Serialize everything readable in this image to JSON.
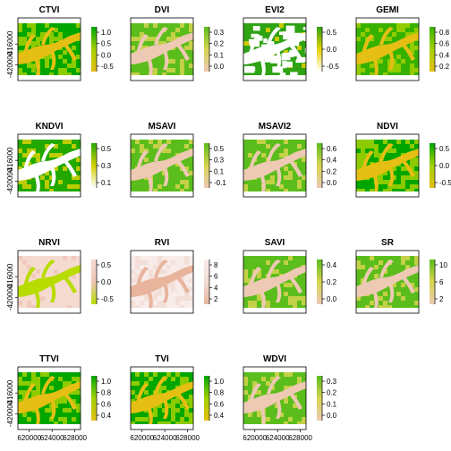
{
  "chart_data": {
    "type": "heatmap",
    "x_axis": {
      "ticks": [
        "620000",
        "624000",
        "628000"
      ],
      "range": [
        618000,
        629000
      ]
    },
    "y_axis": {
      "ticks": [
        "-416000",
        "-420000"
      ],
      "range": [
        -422000,
        -412000
      ]
    },
    "panels": [
      {
        "title": "CTVI",
        "legend": [
          "1.0",
          "0.5",
          "0.0",
          "-0.5"
        ],
        "palette": [
          "#e6bf14",
          "#a3d100",
          "#00a600"
        ],
        "fill": 0.85,
        "white_lake": false
      },
      {
        "title": "DVI",
        "legend": [
          "0.3",
          "0.2",
          "0.1",
          "0.0"
        ],
        "palette": [
          "#eec9b4",
          "#d6d54f",
          "#5bbd1c"
        ],
        "fill": 0.5,
        "white_lake": false
      },
      {
        "title": "EVI2",
        "legend": [
          "0.5",
          "0.0",
          "-0.5"
        ],
        "palette": [
          "#ffffff",
          "#e6d200",
          "#2ea314"
        ],
        "fill": 0.15,
        "white_lake": true
      },
      {
        "title": "GEMI",
        "legend": [
          "0.8",
          "0.6",
          "0.4",
          "0.2"
        ],
        "palette": [
          "#e6bf14",
          "#a3d100",
          "#36b100"
        ],
        "fill": 0.6,
        "white_lake": false
      },
      {
        "title": "KNDVI",
        "legend": [
          "0.5",
          "0.3",
          "0.1"
        ],
        "palette": [
          "#ffffff",
          "#d6d200",
          "#22a800"
        ],
        "fill": 0.7,
        "white_lake": true
      },
      {
        "title": "MSAVI",
        "legend": [
          "0.5",
          "0.3",
          "0.1",
          "-0.1"
        ],
        "palette": [
          "#eec9b4",
          "#d6d54f",
          "#5bbd1c"
        ],
        "fill": 0.5,
        "white_lake": false
      },
      {
        "title": "MSAVI2",
        "legend": [
          "0.6",
          "0.4",
          "0.2",
          "0.0"
        ],
        "palette": [
          "#eec9b4",
          "#d6d54f",
          "#5bbd1c"
        ],
        "fill": 0.5,
        "white_lake": false
      },
      {
        "title": "NDVI",
        "legend": [
          "0.5",
          "0.0",
          "-0.5"
        ],
        "palette": [
          "#e6bf14",
          "#a3d100",
          "#00a600"
        ],
        "fill": 0.85,
        "white_lake": false
      },
      {
        "title": "NRVI",
        "legend": [
          "0.5",
          "0.0",
          "-0.5"
        ],
        "palette": [
          "#b8dc00",
          "#eec6b6",
          "#f5dad0"
        ],
        "fill": 0.3,
        "white_lake": false
      },
      {
        "title": "RVI",
        "legend": [
          "8",
          "6",
          "4",
          "2"
        ],
        "palette": [
          "#e8b49c",
          "#f2ddd5",
          "#f8ecea"
        ],
        "fill": 0.9,
        "white_lake": false
      },
      {
        "title": "SAVI",
        "legend": [
          "0.4",
          "0.2",
          "0.0"
        ],
        "palette": [
          "#eec9b4",
          "#d6d54f",
          "#5bbd1c"
        ],
        "fill": 0.5,
        "white_lake": false
      },
      {
        "title": "SR",
        "legend": [
          "10",
          "6",
          "2"
        ],
        "palette": [
          "#eec9b4",
          "#d6d54f",
          "#5bbd1c"
        ],
        "fill": 0.35,
        "white_lake": false
      },
      {
        "title": "TTVI",
        "legend": [
          "1.0",
          "0.8",
          "0.6",
          "0.4"
        ],
        "palette": [
          "#e6bf14",
          "#a3d100",
          "#00a600"
        ],
        "fill": 0.85,
        "white_lake": false
      },
      {
        "title": "TVI",
        "legend": [
          "1.0",
          "0.8",
          "0.6",
          "0.4"
        ],
        "palette": [
          "#e6bf14",
          "#a3d100",
          "#00a600"
        ],
        "fill": 0.85,
        "white_lake": false
      },
      {
        "title": "WDVI",
        "legend": [
          "0.3",
          "0.2",
          "0.1",
          "0.0"
        ],
        "palette": [
          "#eec9b4",
          "#d6d54f",
          "#5bbd1c"
        ],
        "fill": 0.5,
        "white_lake": false
      }
    ]
  }
}
